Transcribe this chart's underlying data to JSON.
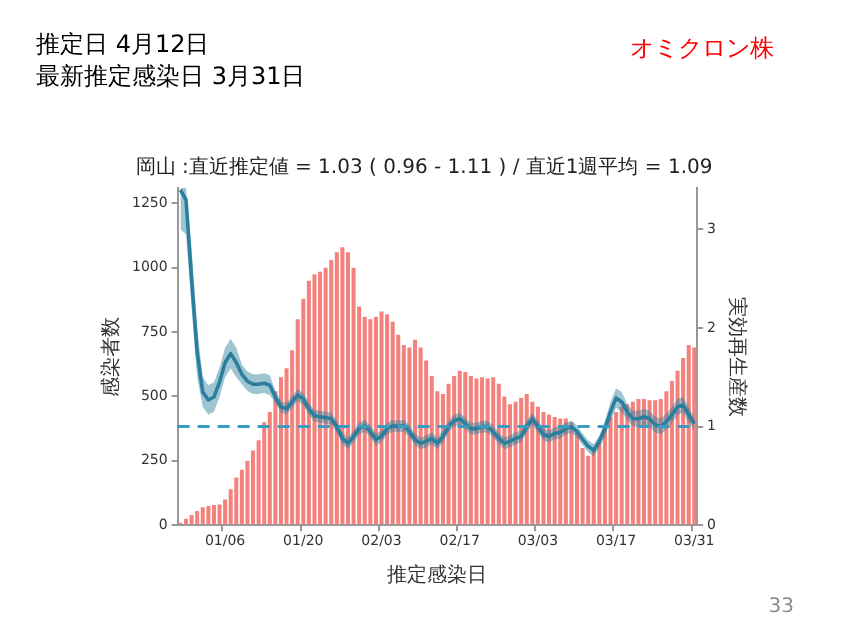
{
  "chart_data": {
    "type": "bar",
    "title": "岡山 :直近推定値 = 1.03 ( 0.96 - 1.11 ) / 直近1週平均 = 1.09",
    "xlabel": "推定感染日",
    "ylabel": "感染者数",
    "y2label": "実効再生産数",
    "annotations": [
      "推定日  4月12日",
      "最新推定感染日  3月31日",
      "オミクロン株",
      "33"
    ],
    "categories": [
      null,
      null,
      null,
      null,
      null,
      null,
      null,
      null,
      "01/06",
      null,
      null,
      null,
      null,
      null,
      null,
      null,
      null,
      null,
      null,
      null,
      null,
      null,
      "01/20",
      null,
      null,
      null,
      null,
      null,
      null,
      null,
      null,
      null,
      null,
      null,
      null,
      null,
      "02/03",
      null,
      null,
      null,
      null,
      null,
      null,
      null,
      null,
      null,
      null,
      null,
      null,
      null,
      "02/17",
      null,
      null,
      null,
      null,
      null,
      null,
      null,
      null,
      null,
      null,
      null,
      null,
      null,
      "03/03",
      null,
      null,
      null,
      null,
      null,
      null,
      null,
      null,
      null,
      null,
      null,
      null,
      null,
      "03/17",
      null,
      null,
      null,
      null,
      null,
      null,
      null,
      null,
      null,
      null,
      null,
      null,
      null,
      "03/31"
    ],
    "series": [
      {
        "color": "#f4817b",
        "values": [
          10,
          25,
          40,
          55,
          70,
          75,
          78,
          80,
          100,
          140,
          185,
          215,
          250,
          290,
          330,
          400,
          440,
          520,
          575,
          610,
          680,
          800,
          880,
          950,
          975,
          985,
          1000,
          1030,
          1060,
          1080,
          1060,
          1000,
          850,
          810,
          800,
          810,
          830,
          820,
          790,
          740,
          700,
          690,
          720,
          690,
          640,
          580,
          520,
          510,
          550,
          580,
          600,
          595,
          580,
          570,
          575,
          570,
          575,
          550,
          500,
          470,
          480,
          495,
          510,
          480,
          460,
          440,
          430,
          420,
          415,
          415,
          400,
          360,
          300,
          270,
          290,
          330,
          370,
          420,
          440,
          460,
          470,
          480,
          490,
          490,
          485,
          485,
          490,
          520,
          560,
          600,
          650,
          700,
          690
        ]
      },
      {
        "type": "line",
        "axis": "y2",
        "color": "#2b7f9e",
        "values": [
          3.4,
          3.3,
          2.5,
          1.75,
          1.35,
          1.27,
          1.3,
          1.45,
          1.65,
          1.74,
          1.65,
          1.53,
          1.46,
          1.43,
          1.43,
          1.44,
          1.42,
          1.3,
          1.2,
          1.18,
          1.25,
          1.32,
          1.28,
          1.18,
          1.11,
          1.1,
          1.09,
          1.08,
          1.0,
          0.88,
          0.83,
          0.9,
          0.98,
          1.01,
          0.95,
          0.87,
          0.9,
          0.98,
          1.01,
          1.0,
          1.01,
          0.95,
          0.87,
          0.83,
          0.85,
          0.88,
          0.83,
          0.9,
          1.0,
          1.06,
          1.08,
          1.03,
          0.98,
          0.98,
          1.0,
          1.0,
          0.95,
          0.88,
          0.83,
          0.85,
          0.88,
          0.9,
          1.0,
          1.08,
          1.0,
          0.92,
          0.9,
          0.93,
          0.94,
          0.98,
          1.0,
          0.95,
          0.87,
          0.8,
          0.76,
          0.85,
          0.98,
          1.15,
          1.29,
          1.25,
          1.15,
          1.08,
          1.08,
          1.1,
          1.08,
          1.02,
          1.0,
          1.05,
          1.12,
          1.2,
          1.22,
          1.12,
          1.03
        ],
        "lower": [
          3.0,
          2.95,
          2.2,
          1.5,
          1.2,
          1.12,
          1.15,
          1.3,
          1.5,
          1.59,
          1.5,
          1.43,
          1.36,
          1.33,
          1.33,
          1.34,
          1.32,
          1.24,
          1.14,
          1.12,
          1.19,
          1.26,
          1.22,
          1.12,
          1.05,
          1.04,
          1.03,
          1.02,
          0.94,
          0.82,
          0.77,
          0.84,
          0.92,
          0.95,
          0.89,
          0.81,
          0.84,
          0.92,
          0.95,
          0.94,
          0.95,
          0.89,
          0.81,
          0.77,
          0.79,
          0.82,
          0.77,
          0.84,
          0.94,
          1.0,
          1.02,
          0.97,
          0.92,
          0.92,
          0.94,
          0.94,
          0.89,
          0.82,
          0.77,
          0.79,
          0.82,
          0.84,
          0.94,
          1.02,
          0.94,
          0.86,
          0.84,
          0.87,
          0.88,
          0.92,
          0.94,
          0.89,
          0.81,
          0.74,
          0.7,
          0.79,
          0.9,
          1.05,
          1.19,
          1.15,
          1.07,
          1.0,
          1.0,
          1.02,
          1.0,
          0.94,
          0.92,
          0.97,
          1.04,
          1.12,
          1.14,
          1.04,
          0.96
        ],
        "upper": [
          3.42,
          3.42,
          2.8,
          2.0,
          1.5,
          1.42,
          1.45,
          1.6,
          1.8,
          1.89,
          1.8,
          1.63,
          1.56,
          1.53,
          1.53,
          1.54,
          1.52,
          1.36,
          1.26,
          1.24,
          1.31,
          1.38,
          1.34,
          1.24,
          1.17,
          1.16,
          1.15,
          1.14,
          1.06,
          0.94,
          0.89,
          0.96,
          1.04,
          1.07,
          1.01,
          0.93,
          0.96,
          1.04,
          1.07,
          1.06,
          1.07,
          1.01,
          0.93,
          0.89,
          0.91,
          0.94,
          0.89,
          0.96,
          1.06,
          1.12,
          1.14,
          1.09,
          1.04,
          1.04,
          1.06,
          1.06,
          1.01,
          0.94,
          0.89,
          0.91,
          0.94,
          0.96,
          1.06,
          1.14,
          1.06,
          0.98,
          0.96,
          0.99,
          1.0,
          1.04,
          1.06,
          1.01,
          0.93,
          0.86,
          0.82,
          0.91,
          1.06,
          1.25,
          1.39,
          1.35,
          1.23,
          1.16,
          1.16,
          1.18,
          1.16,
          1.1,
          1.08,
          1.13,
          1.2,
          1.28,
          1.3,
          1.2,
          1.1
        ]
      }
    ],
    "ylim": [
      0,
      1310
    ],
    "yticks": [
      0,
      250,
      500,
      750,
      1000,
      1250
    ],
    "y2lim": [
      0,
      3.42
    ],
    "y2ticks": [
      0,
      1,
      2,
      3
    ],
    "ref_lines": [
      {
        "axis": "y2",
        "value": 1,
        "color": "#3a9cc0",
        "line_style": "dashed"
      }
    ],
    "grid": false,
    "legend": false
  }
}
